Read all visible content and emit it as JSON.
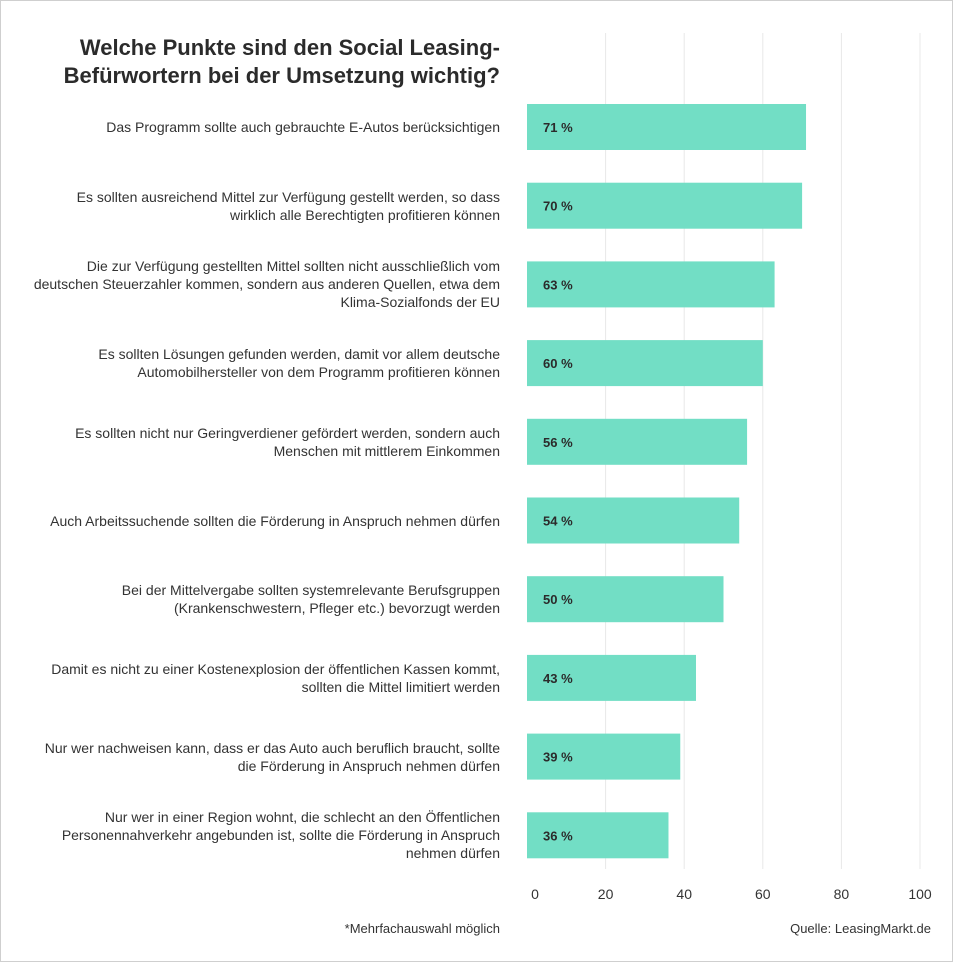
{
  "chart_data": {
    "type": "bar",
    "orientation": "horizontal",
    "title": "Welche Punkte sind den Social Leasing-Befürwortern bei der Umsetzung wichtig?",
    "categories": [
      "Das Programm sollte auch gebrauchte E-Autos berücksichtigen",
      "Es sollten ausreichend Mittel zur Verfügung gestellt werden, so dass wirklich alle Berechtigten profitieren können",
      "Die zur Verfügung gestellten Mittel sollten nicht ausschließlich vom deutschen Steuerzahler kommen, sondern aus anderen Quellen, etwa dem Klima-Sozialfonds der EU",
      "Es sollten Lösungen gefunden werden, damit vor allem deutsche Automobilhersteller von dem Programm profitieren können",
      "Es sollten nicht nur Geringverdiener gefördert werden, sondern auch Menschen mit mittlerem Einkommen",
      "Auch Arbeitssuchende sollten die Förderung in Anspruch nehmen dürfen",
      "Bei der Mittelvergabe sollten systemrelevante Berufsgruppen (Krankenschwestern, Pfleger etc.) bevorzugt werden",
      "Damit es nicht zu einer Kostenexplosion der öffentlichen Kassen kommt, sollten die Mittel limitiert werden",
      "Nur wer nachweisen kann, dass er das Auto auch beruflich braucht, sollte die Förderung in Anspruch nehmen dürfen",
      "Nur wer in einer Region wohnt, die schlecht an den Öffentlichen Personennahverkehr angebunden ist, sollte die Förderung in Anspruch nehmen dürfen"
    ],
    "values": [
      71,
      70,
      63,
      60,
      56,
      54,
      50,
      43,
      39,
      36
    ],
    "data_labels": [
      "71 %",
      "70 %",
      "63 %",
      "60 %",
      "56 %",
      "54 %",
      "50 %",
      "43 %",
      "39 %",
      "36 %"
    ],
    "xlim": [
      0,
      100
    ],
    "xticks": [
      0,
      20,
      40,
      60,
      80,
      100
    ],
    "grid": "vertical",
    "bar_color": "#72dec5",
    "grid_color": "#e8e8e8",
    "footnote": "*Mehrfachauswahl möglich",
    "source": "Quelle: LeasingMarkt.de"
  }
}
